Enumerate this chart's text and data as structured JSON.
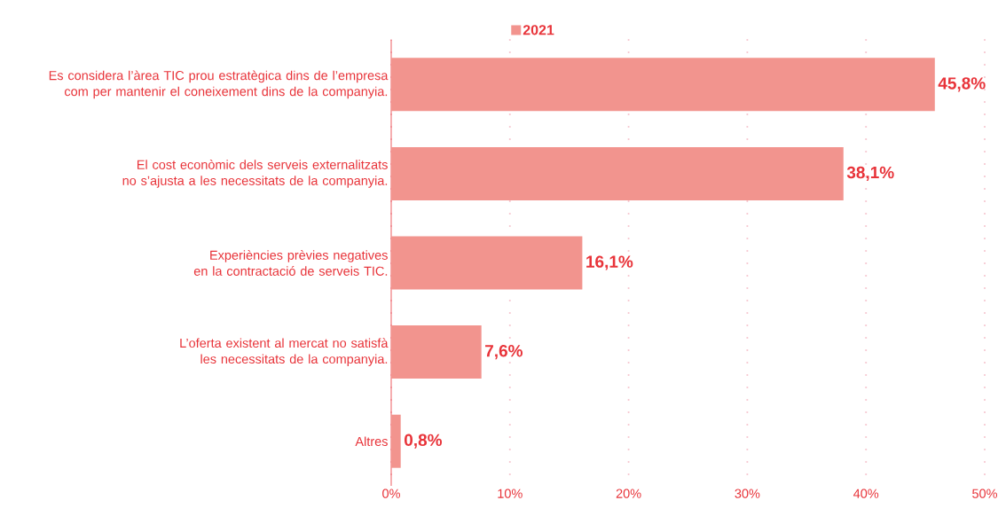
{
  "chart_data": {
    "type": "bar",
    "orientation": "horizontal",
    "categories": [
      "Es considera l’àrea TIC prou estratègica dins de l’empresa com per mantenir el coneixement dins de la companyia.",
      "El cost econòmic dels serveis externalitzats no s’ajusta a les necessitats de la companyia.",
      "Experiències prèvies negatives en la contractació de serveis TIC.",
      "L’oferta existent al mercat no satisfà les necessitats de la companyia.",
      "Altres"
    ],
    "series": [
      {
        "name": "2021",
        "color": "#f2948e",
        "values": [
          45.8,
          38.1,
          16.1,
          7.6,
          0.8
        ],
        "value_labels": [
          "45,8%",
          "38,1%",
          "16,1%",
          "7,6%",
          "0,8%"
        ]
      }
    ],
    "xlim": [
      0,
      50
    ],
    "xticks": [
      {
        "value": 0,
        "label": "0%"
      },
      {
        "value": 10,
        "label": "10%"
      },
      {
        "value": 20,
        "label": "20%"
      },
      {
        "value": 30,
        "label": "30%"
      },
      {
        "value": 40,
        "label": "40%"
      },
      {
        "value": 50,
        "label": "50%"
      }
    ],
    "grid": "x",
    "legend": "top"
  }
}
